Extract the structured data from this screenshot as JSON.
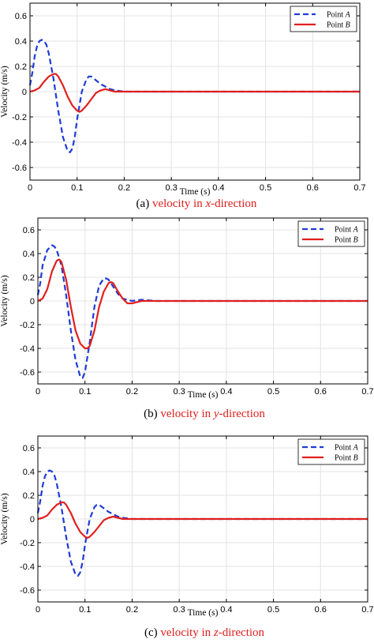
{
  "chart_data": [
    {
      "type": "line",
      "xlabel": "Time (s)",
      "ylabel": "Velocity (m/s)",
      "xlim": [
        0,
        0.7
      ],
      "ylim": [
        -0.7,
        0.7
      ],
      "xticks": [
        "0",
        "0.1",
        "0.2",
        "0.3",
        "0.4",
        "0.5",
        "0.6",
        "0.7"
      ],
      "yticks": [
        "0.6",
        "0.4",
        "0.2",
        "0",
        "-0.2",
        "-0.4",
        "-0.6"
      ],
      "grid": true,
      "legend_position": "top-right",
      "caption": {
        "prefix": "(a) ",
        "rest": "velocity in ",
        "axis": "x",
        "suffix": "-direction"
      },
      "series": [
        {
          "name": "Point A",
          "legend_plain": "Point ",
          "legend_italic": "A",
          "color": "#1f3bd6",
          "style": "dashed",
          "x": [
            0,
            0.005,
            0.01,
            0.015,
            0.02,
            0.025,
            0.03,
            0.035,
            0.04,
            0.05,
            0.06,
            0.07,
            0.08,
            0.085,
            0.09,
            0.095,
            0.1,
            0.11,
            0.12,
            0.125,
            0.13,
            0.14,
            0.15,
            0.16,
            0.17,
            0.18,
            0.19,
            0.2,
            0.22,
            0.25,
            0.3,
            0.4,
            0.5,
            0.6,
            0.7
          ],
          "y": [
            0.05,
            0.15,
            0.28,
            0.36,
            0.4,
            0.41,
            0.4,
            0.37,
            0.3,
            0.1,
            -0.15,
            -0.36,
            -0.47,
            -0.48,
            -0.45,
            -0.36,
            -0.22,
            0.0,
            0.1,
            0.12,
            0.12,
            0.09,
            0.06,
            0.04,
            0.02,
            0.01,
            0.005,
            0.0,
            0.0,
            0.0,
            0.0,
            0.0,
            0.0,
            0.0,
            0.0
          ]
        },
        {
          "name": "Point B",
          "legend_plain": "Point ",
          "legend_italic": "B",
          "color": "#e0201e",
          "style": "solid",
          "x": [
            0,
            0.01,
            0.02,
            0.03,
            0.04,
            0.05,
            0.055,
            0.06,
            0.07,
            0.08,
            0.09,
            0.1,
            0.105,
            0.11,
            0.12,
            0.13,
            0.14,
            0.15,
            0.16,
            0.17,
            0.18,
            0.2,
            0.25,
            0.3,
            0.4,
            0.5,
            0.6,
            0.7
          ],
          "y": [
            0.0,
            0.01,
            0.03,
            0.08,
            0.12,
            0.14,
            0.14,
            0.12,
            0.05,
            -0.04,
            -0.11,
            -0.15,
            -0.16,
            -0.15,
            -0.11,
            -0.06,
            -0.01,
            0.01,
            0.02,
            0.01,
            0.0,
            0.0,
            0.0,
            0.0,
            0.0,
            0.0,
            0.0,
            0.0
          ]
        }
      ]
    },
    {
      "type": "line",
      "xlabel": "Time (s)",
      "ylabel": "Velocity (m/s)",
      "xlim": [
        0,
        0.7
      ],
      "ylim": [
        -0.7,
        0.7
      ],
      "xticks": [
        "0",
        "0.1",
        "0.2",
        "0.3",
        "0.4",
        "0.5",
        "0.6",
        "0.7"
      ],
      "yticks": [
        "0.6",
        "0.4",
        "0.2",
        "0",
        "-0.2",
        "-0.4",
        "-0.6"
      ],
      "grid": true,
      "legend_position": "top-right",
      "caption": {
        "prefix": "(b) ",
        "rest": "velocity in ",
        "axis": "y",
        "suffix": "-direction"
      },
      "series": [
        {
          "name": "Point A",
          "legend_plain": "Point ",
          "legend_italic": "A",
          "color": "#1f3bd6",
          "style": "dashed",
          "x": [
            0,
            0.005,
            0.01,
            0.02,
            0.03,
            0.035,
            0.04,
            0.05,
            0.06,
            0.07,
            0.08,
            0.09,
            0.095,
            0.1,
            0.11,
            0.12,
            0.13,
            0.14,
            0.145,
            0.15,
            0.16,
            0.17,
            0.18,
            0.19,
            0.2,
            0.22,
            0.25,
            0.3,
            0.4,
            0.5,
            0.6,
            0.7
          ],
          "y": [
            0.05,
            0.15,
            0.3,
            0.43,
            0.47,
            0.46,
            0.43,
            0.3,
            0.05,
            -0.25,
            -0.5,
            -0.64,
            -0.65,
            -0.6,
            -0.35,
            -0.05,
            0.13,
            0.19,
            0.19,
            0.18,
            0.12,
            0.06,
            0.02,
            0.01,
            0.0,
            0.01,
            0.0,
            0.0,
            0.0,
            0.0,
            0.0,
            0.0
          ]
        },
        {
          "name": "Point B",
          "legend_plain": "Point ",
          "legend_italic": "B",
          "color": "#e0201e",
          "style": "solid",
          "x": [
            0,
            0.01,
            0.02,
            0.03,
            0.04,
            0.045,
            0.05,
            0.06,
            0.07,
            0.08,
            0.09,
            0.1,
            0.105,
            0.11,
            0.12,
            0.13,
            0.14,
            0.15,
            0.155,
            0.16,
            0.17,
            0.18,
            0.19,
            0.2,
            0.22,
            0.25,
            0.3,
            0.4,
            0.5,
            0.6,
            0.7
          ],
          "y": [
            0.0,
            0.02,
            0.1,
            0.25,
            0.34,
            0.35,
            0.33,
            0.18,
            -0.05,
            -0.25,
            -0.36,
            -0.4,
            -0.4,
            -0.38,
            -0.25,
            -0.05,
            0.08,
            0.15,
            0.16,
            0.15,
            0.08,
            0.02,
            -0.02,
            -0.02,
            0.0,
            0.0,
            0.0,
            0.0,
            0.0,
            0.0,
            0.0
          ]
        }
      ]
    },
    {
      "type": "line",
      "xlabel": "Time (s)",
      "ylabel": "Velocity (m/s)",
      "xlim": [
        0,
        0.7
      ],
      "ylim": [
        -0.7,
        0.7
      ],
      "xticks": [
        "0",
        "0.1",
        "0.2",
        "0.3",
        "0.4",
        "0.5",
        "0.6",
        "0.7"
      ],
      "yticks": [
        "0.6",
        "0.4",
        "0.2",
        "0",
        "-0.2",
        "-0.4",
        "-0.6"
      ],
      "grid": true,
      "legend_position": "top-right",
      "caption": {
        "prefix": "(c) ",
        "rest": "velocity in ",
        "axis": "z",
        "suffix": "-direction"
      },
      "series": [
        {
          "name": "Point A",
          "legend_plain": "Point ",
          "legend_italic": "A",
          "color": "#1f3bd6",
          "style": "dashed",
          "x": [
            0,
            0.005,
            0.01,
            0.015,
            0.02,
            0.025,
            0.03,
            0.035,
            0.04,
            0.05,
            0.06,
            0.07,
            0.08,
            0.085,
            0.09,
            0.095,
            0.1,
            0.11,
            0.12,
            0.125,
            0.13,
            0.14,
            0.15,
            0.16,
            0.17,
            0.18,
            0.19,
            0.2,
            0.22,
            0.25,
            0.3,
            0.4,
            0.5,
            0.6,
            0.7
          ],
          "y": [
            0.05,
            0.15,
            0.28,
            0.36,
            0.4,
            0.41,
            0.4,
            0.37,
            0.3,
            0.1,
            -0.15,
            -0.36,
            -0.47,
            -0.48,
            -0.45,
            -0.36,
            -0.22,
            0.0,
            0.1,
            0.12,
            0.12,
            0.09,
            0.06,
            0.04,
            0.02,
            0.01,
            0.005,
            0.0,
            0.0,
            0.0,
            0.0,
            0.0,
            0.0,
            0.0,
            0.0
          ]
        },
        {
          "name": "Point B",
          "legend_plain": "Point ",
          "legend_italic": "B",
          "color": "#e0201e",
          "style": "solid",
          "x": [
            0,
            0.01,
            0.02,
            0.03,
            0.04,
            0.05,
            0.055,
            0.06,
            0.07,
            0.08,
            0.09,
            0.1,
            0.105,
            0.11,
            0.12,
            0.13,
            0.14,
            0.15,
            0.16,
            0.17,
            0.18,
            0.2,
            0.25,
            0.3,
            0.4,
            0.5,
            0.6,
            0.7
          ],
          "y": [
            0.0,
            0.01,
            0.03,
            0.08,
            0.12,
            0.14,
            0.14,
            0.12,
            0.05,
            -0.04,
            -0.11,
            -0.15,
            -0.16,
            -0.15,
            -0.11,
            -0.06,
            -0.01,
            0.01,
            0.02,
            0.01,
            0.0,
            0.0,
            0.0,
            0.0,
            0.0,
            0.0,
            0.0,
            0.0
          ]
        }
      ]
    }
  ],
  "colors": {
    "caption_label": "#000000",
    "caption_text": "#e0201e",
    "grid": "#e3e3e3",
    "axis": "#000000"
  }
}
